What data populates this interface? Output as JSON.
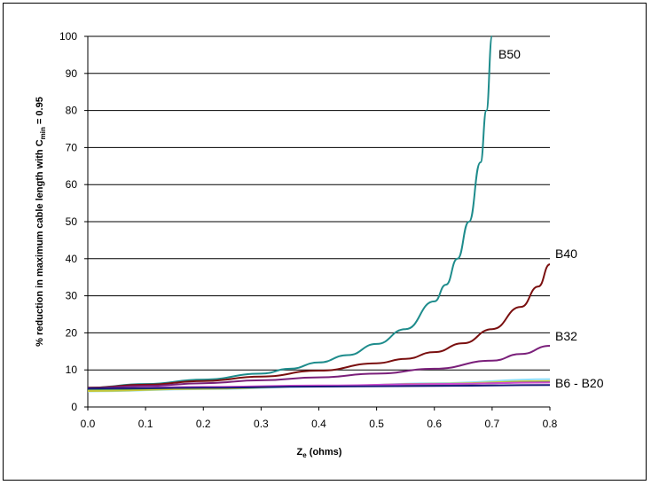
{
  "chart_data": {
    "type": "line",
    "xlabel_main": "Z",
    "xlabel_sub": "e",
    "xlabel_tail": " (ohms)",
    "ylabel_main": "% reduction in maximum cable length with C",
    "ylabel_sub": "min",
    "ylabel_tail": " = 0.95",
    "xlim": [
      0,
      0.8
    ],
    "ylim": [
      0,
      100
    ],
    "x_ticks": [
      "0.0",
      "0.1",
      "0.2",
      "0.3",
      "0.4",
      "0.5",
      "0.6",
      "0.7",
      "0.8"
    ],
    "y_ticks": [
      "0",
      "10",
      "20",
      "30",
      "40",
      "50",
      "60",
      "70",
      "80",
      "90",
      "100"
    ],
    "grid": "horizontal",
    "legend": "none",
    "series": [
      {
        "name": "B50",
        "color": "#1e8c8c",
        "points": [
          [
            0,
            5.2
          ],
          [
            0.1,
            6.2
          ],
          [
            0.2,
            7.4
          ],
          [
            0.3,
            9.0
          ],
          [
            0.35,
            10.3
          ],
          [
            0.4,
            12.0
          ],
          [
            0.45,
            14.0
          ],
          [
            0.5,
            17.0
          ],
          [
            0.55,
            21.0
          ],
          [
            0.6,
            28.5
          ],
          [
            0.62,
            33.0
          ],
          [
            0.64,
            40.0
          ],
          [
            0.66,
            50.0
          ],
          [
            0.68,
            66.0
          ],
          [
            0.69,
            80.0
          ],
          [
            0.7,
            100.0
          ]
        ]
      },
      {
        "name": "B40",
        "color": "#7a0f0f",
        "points": [
          [
            0,
            5.2
          ],
          [
            0.1,
            6.0
          ],
          [
            0.2,
            7.0
          ],
          [
            0.3,
            8.2
          ],
          [
            0.4,
            9.8
          ],
          [
            0.5,
            11.8
          ],
          [
            0.55,
            13.0
          ],
          [
            0.6,
            14.8
          ],
          [
            0.65,
            17.2
          ],
          [
            0.7,
            21.0
          ],
          [
            0.75,
            27.0
          ],
          [
            0.78,
            32.5
          ],
          [
            0.8,
            38.5
          ]
        ]
      },
      {
        "name": "B32",
        "color": "#7a1f7a",
        "points": [
          [
            0,
            5.1
          ],
          [
            0.1,
            5.7
          ],
          [
            0.2,
            6.4
          ],
          [
            0.3,
            7.2
          ],
          [
            0.4,
            8.0
          ],
          [
            0.5,
            9.0
          ],
          [
            0.6,
            10.3
          ],
          [
            0.7,
            12.5
          ],
          [
            0.75,
            14.3
          ],
          [
            0.8,
            16.5
          ]
        ]
      },
      {
        "name": "",
        "color": "#8ee0ff",
        "points": [
          [
            0,
            4.2
          ],
          [
            0.2,
            4.8
          ],
          [
            0.4,
            5.5
          ],
          [
            0.6,
            6.4
          ],
          [
            0.8,
            7.5
          ]
        ]
      },
      {
        "name": "",
        "color": "#c9c93a",
        "points": [
          [
            0,
            4.3
          ],
          [
            0.2,
            4.9
          ],
          [
            0.4,
            5.6
          ],
          [
            0.6,
            6.3
          ],
          [
            0.8,
            7.0
          ]
        ]
      },
      {
        "name": "",
        "color": "#3a8a3a",
        "points": [
          [
            0,
            4.8
          ],
          [
            0.2,
            5.2
          ],
          [
            0.4,
            5.6
          ],
          [
            0.6,
            6.1
          ],
          [
            0.8,
            6.7
          ]
        ]
      },
      {
        "name": "",
        "color": "#d04ad0",
        "points": [
          [
            0,
            5.0
          ],
          [
            0.2,
            5.4
          ],
          [
            0.4,
            5.8
          ],
          [
            0.6,
            6.2
          ],
          [
            0.8,
            6.6
          ]
        ]
      },
      {
        "name": "",
        "color": "#1a1a7a",
        "points": [
          [
            0,
            5.0
          ],
          [
            0.2,
            5.2
          ],
          [
            0.4,
            5.5
          ],
          [
            0.6,
            5.7
          ],
          [
            0.8,
            5.9
          ]
        ]
      }
    ],
    "annotations": [
      "B50",
      "B40",
      "B32",
      "B6 - B20"
    ]
  }
}
